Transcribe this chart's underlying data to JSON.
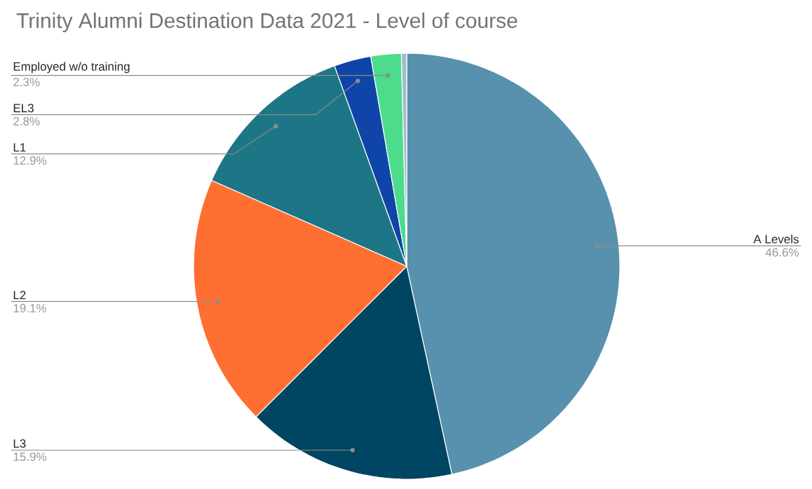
{
  "chart_data": {
    "type": "pie",
    "title": "Trinity Alumni Destination Data 2021 - Level of course",
    "categories": [
      "A Levels",
      "L3",
      "L2",
      "L1",
      "EL3",
      "Employed w/o training",
      null
    ],
    "values": [
      46.6,
      15.9,
      19.1,
      12.9,
      2.8,
      2.3,
      0.4
    ],
    "value_labels": [
      "46.6%",
      "15.9%",
      "19.1%",
      "12.9%",
      "2.8%",
      "2.3%",
      null
    ],
    "colors": [
      "#5891ad",
      "#004561",
      "#ff6f31",
      "#1c7685",
      "#0f45a8",
      "#4cdc8b",
      "#a3bccb"
    ]
  }
}
